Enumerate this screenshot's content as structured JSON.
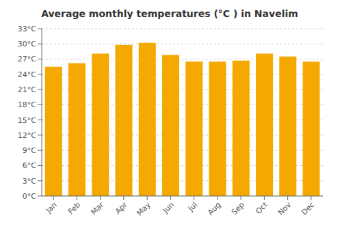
{
  "chart_data": {
    "type": "bar",
    "title": "Average monthly temperatures (°C ) in Navelim",
    "categories": [
      "Jan",
      "Feb",
      "Mar",
      "Apr",
      "May",
      "Jun",
      "Jul",
      "Aug",
      "Sep",
      "Oct",
      "Nov",
      "Dec"
    ],
    "values": [
      25.5,
      26.2,
      28.1,
      29.8,
      30.2,
      27.8,
      26.5,
      26.5,
      26.7,
      28.1,
      27.5,
      26.5
    ],
    "color": "#F5A800",
    "ylim": [
      0,
      33
    ],
    "yticks": [
      {
        "value": 0,
        "label": "0°C"
      },
      {
        "value": 3,
        "label": "3°C"
      },
      {
        "value": 6,
        "label": "6°C"
      },
      {
        "value": 9,
        "label": "9°C"
      },
      {
        "value": 12,
        "label": "12°C"
      },
      {
        "value": 15,
        "label": "15°C"
      },
      {
        "value": 18,
        "label": "18°C"
      },
      {
        "value": 21,
        "label": "21°C"
      },
      {
        "value": 24,
        "label": "24°C"
      },
      {
        "value": 27,
        "label": "27°C"
      },
      {
        "value": 30,
        "label": "30°C"
      },
      {
        "value": 33,
        "label": "33°C"
      }
    ],
    "grid": true
  }
}
